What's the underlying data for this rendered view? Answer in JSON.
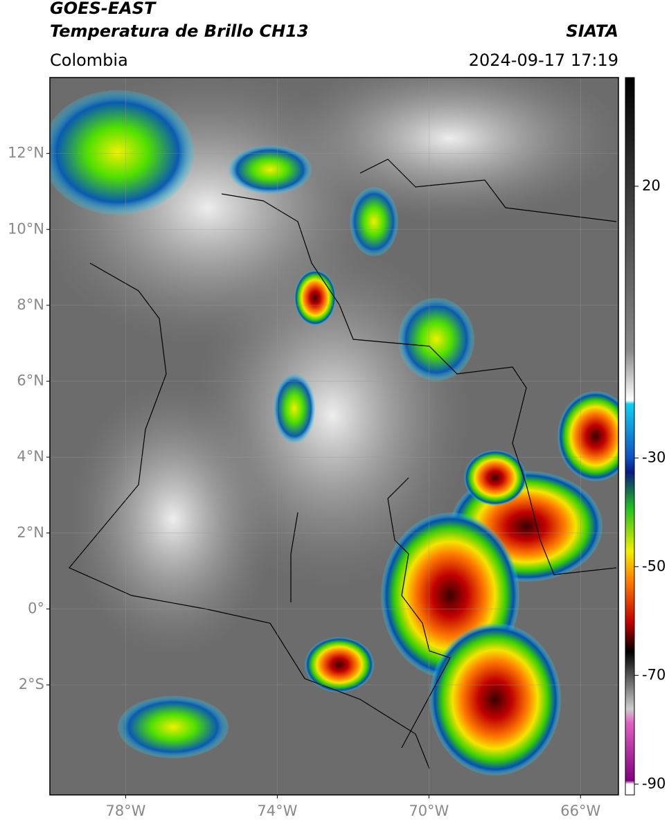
{
  "header": {
    "title": "GOES-EAST",
    "subtitle": "Temperatura de Brillo CH13",
    "source": "SIATA",
    "region": "Colombia",
    "datetime": "2024-09-17 17:19"
  },
  "map": {
    "type": "map",
    "xlim": [
      -80,
      -65
    ],
    "ylim": [
      -4.9,
      14
    ],
    "xticks": [
      {
        "value": -78,
        "label": "78°W"
      },
      {
        "value": -74,
        "label": "74°W"
      },
      {
        "value": -70,
        "label": "70°W"
      },
      {
        "value": -66,
        "label": "66°W"
      }
    ],
    "yticks": [
      {
        "value": 12,
        "label": "12°N"
      },
      {
        "value": 10,
        "label": "10°N"
      },
      {
        "value": 8,
        "label": "8°N"
      },
      {
        "value": 6,
        "label": "6°N"
      },
      {
        "value": 4,
        "label": "4°N"
      },
      {
        "value": 2,
        "label": "2°N"
      },
      {
        "value": 0,
        "label": "0°"
      },
      {
        "value": -2,
        "label": "2°S"
      }
    ],
    "grid": true
  },
  "colorbar": {
    "clim": [
      -92,
      40
    ],
    "ticks": [
      20,
      -30,
      -50,
      -70,
      -90
    ]
  }
}
